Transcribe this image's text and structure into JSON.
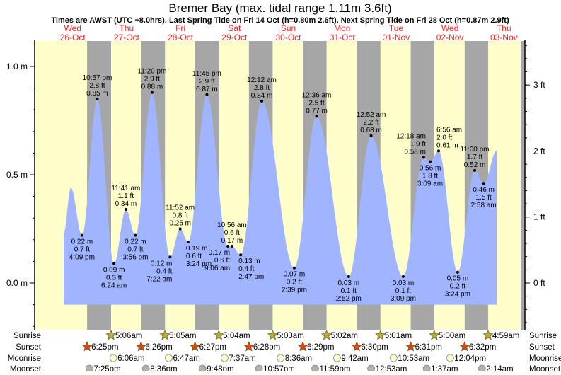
{
  "title": "Bremer Bay (max. tidal range 1.11m 3.6ft)",
  "subtitle": "Times are AWST (UTC +8.0hrs). Last Spring Tide on Fri 14 Oct (h=0.80m 2.6ft). Next Spring Tide on Fri 28 Oct (h=0.87m 2.9ft)",
  "colors": {
    "day": "#ffffcc",
    "night": "#a6a6a6",
    "water": "#a0b4ff",
    "day_label": "#ff2020",
    "sunrise": "#b8ac3c",
    "sunset": "#d9461a",
    "moonrise": "#ffffcc",
    "moonset": "#b4b4a4"
  },
  "chart_data": {
    "type": "area",
    "title": "Bremer Bay (max. tidal range 1.11m 3.6ft)",
    "days": [
      {
        "dow": "Wed",
        "date": "26-Oct"
      },
      {
        "dow": "Thu",
        "date": "27-Oct"
      },
      {
        "dow": "Fri",
        "date": "28-Oct"
      },
      {
        "dow": "Sat",
        "date": "29-Oct"
      },
      {
        "dow": "Sun",
        "date": "30-Oct"
      },
      {
        "dow": "Mon",
        "date": "31-Oct"
      },
      {
        "dow": "Tue",
        "date": "01-Nov"
      },
      {
        "dow": "Wed",
        "date": "02-Nov"
      },
      {
        "dow": "Thu",
        "date": "03-Nov"
      }
    ],
    "y_left": {
      "unit": "m",
      "ticks": [
        {
          "v": 0.0,
          "label": "0.0 m"
        },
        {
          "v": 0.5,
          "label": "0.5 m"
        },
        {
          "v": 1.0,
          "label": "1.0 m"
        }
      ],
      "range": [
        -0.21,
        1.12
      ]
    },
    "y_right": {
      "unit": "ft",
      "ticks": [
        {
          "v": 0,
          "label": "0 ft"
        },
        {
          "v": 1,
          "label": "1 ft"
        },
        {
          "v": 2,
          "label": "2 ft"
        },
        {
          "v": 3,
          "label": "3 ft"
        }
      ]
    },
    "curve_ends": [
      {
        "date": "26-Oct",
        "time": "8:00 am",
        "m": 0.23
      },
      {
        "date": "03-Nov",
        "time": "8:48 am",
        "m": 0.61
      }
    ],
    "extremes": [
      {
        "date": "26-Oct",
        "time": "11:12 am",
        "m": 0.44,
        "type": "high",
        "labeled": false
      },
      {
        "date": "26-Oct",
        "time": "4:09 pm",
        "m": 0.22,
        "ft": "0.7 ft",
        "type": "low",
        "labeled": true
      },
      {
        "date": "26-Oct",
        "time": "10:57 pm",
        "m": 0.85,
        "ft": "2.8 ft",
        "type": "high",
        "labeled": true
      },
      {
        "date": "27-Oct",
        "time": "6:24 am",
        "m": 0.09,
        "ft": "0.3 ft",
        "type": "low",
        "labeled": true
      },
      {
        "date": "27-Oct",
        "time": "11:41 am",
        "m": 0.34,
        "ft": "1.1 ft",
        "type": "high",
        "labeled": true
      },
      {
        "date": "27-Oct",
        "time": "3:56 pm",
        "m": 0.22,
        "ft": "0.7 ft",
        "type": "low",
        "labeled": true
      },
      {
        "date": "27-Oct",
        "time": "11:20 pm",
        "m": 0.88,
        "ft": "2.9 ft",
        "type": "high",
        "labeled": true
      },
      {
        "date": "28-Oct",
        "time": "7:22 am",
        "m": 0.12,
        "ft": "0.4 ft",
        "type": "low",
        "labeled": true
      },
      {
        "date": "28-Oct",
        "time": "11:52 am",
        "m": 0.25,
        "ft": "0.8 ft",
        "type": "high",
        "labeled": true
      },
      {
        "date": "28-Oct",
        "time": "3:24 pm",
        "m": 0.19,
        "ft": "0.6 ft",
        "type": "low",
        "labeled": true
      },
      {
        "date": "28-Oct",
        "time": "11:45 pm",
        "m": 0.87,
        "ft": "2.9 ft",
        "type": "high",
        "labeled": true
      },
      {
        "date": "29-Oct",
        "time": "9:06 am",
        "m": 0.17,
        "ft": "0.6 ft",
        "type": "low",
        "labeled": true
      },
      {
        "date": "29-Oct",
        "time": "10:56 am",
        "m": 0.17,
        "ft": "0.6 ft",
        "type": "high",
        "labeled": true
      },
      {
        "date": "29-Oct",
        "time": "2:47 pm",
        "m": 0.13,
        "ft": "0.4 ft",
        "type": "low",
        "labeled": true
      },
      {
        "date": "30-Oct",
        "time": "12:12 am",
        "m": 0.84,
        "ft": "2.8 ft",
        "type": "high",
        "labeled": true
      },
      {
        "date": "30-Oct",
        "time": "2:39 pm",
        "m": 0.07,
        "ft": "0.2 ft",
        "type": "low",
        "labeled": true
      },
      {
        "date": "31-Oct",
        "time": "12:36 am",
        "m": 0.77,
        "ft": "2.5 ft",
        "type": "high",
        "labeled": true
      },
      {
        "date": "31-Oct",
        "time": "2:52 pm",
        "m": 0.03,
        "ft": "0.1 ft",
        "type": "low",
        "labeled": true
      },
      {
        "date": "01-Nov",
        "time": "12:52 am",
        "m": 0.68,
        "ft": "2.2 ft",
        "type": "high",
        "labeled": true
      },
      {
        "date": "01-Nov",
        "time": "3:09 pm",
        "m": 0.03,
        "ft": "0.1 ft",
        "type": "low",
        "labeled": true
      },
      {
        "date": "02-Nov",
        "time": "12:18 am",
        "m": 0.58,
        "ft": "1.9 ft",
        "type": "high",
        "labeled": true
      },
      {
        "date": "02-Nov",
        "time": "3:09 am",
        "m": 0.56,
        "ft": "1.8 ft",
        "type": "low",
        "labeled": true
      },
      {
        "date": "02-Nov",
        "time": "6:56 am",
        "m": 0.61,
        "ft": "2.0 ft",
        "type": "high",
        "labeled": true
      },
      {
        "date": "02-Nov",
        "time": "3:24 pm",
        "m": 0.05,
        "ft": "0.2 ft",
        "type": "low",
        "labeled": true
      },
      {
        "date": "02-Nov",
        "time": "11:00 pm",
        "m": 0.52,
        "ft": "1.7 ft",
        "type": "high",
        "labeled": true
      },
      {
        "date": "03-Nov",
        "time": "2:58 am",
        "m": 0.46,
        "ft": "1.5 ft",
        "type": "low",
        "labeled": true
      }
    ],
    "legend": {
      "sunrise": {
        "label": "Sunrise",
        "events": [
          {
            "date": "27-Oct",
            "time": "5:06am"
          },
          {
            "date": "28-Oct",
            "time": "5:05am"
          },
          {
            "date": "29-Oct",
            "time": "5:04am"
          },
          {
            "date": "30-Oct",
            "time": "5:03am"
          },
          {
            "date": "31-Oct",
            "time": "5:02am"
          },
          {
            "date": "01-Nov",
            "time": "5:01am"
          },
          {
            "date": "02-Nov",
            "time": "5:00am"
          },
          {
            "date": "03-Nov",
            "time": "4:59am"
          }
        ]
      },
      "sunset": {
        "label": "Sunset",
        "events": [
          {
            "date": "26-Oct",
            "time": "6:25pm"
          },
          {
            "date": "27-Oct",
            "time": "6:26pm"
          },
          {
            "date": "28-Oct",
            "time": "6:27pm"
          },
          {
            "date": "29-Oct",
            "time": "6:28pm"
          },
          {
            "date": "30-Oct",
            "time": "6:29pm"
          },
          {
            "date": "31-Oct",
            "time": "6:30pm"
          },
          {
            "date": "01-Nov",
            "time": "6:31pm"
          },
          {
            "date": "02-Nov",
            "time": "6:32pm"
          }
        ]
      },
      "moonrise": {
        "label": "Moonrise",
        "events": [
          {
            "date": "27-Oct",
            "time": "6:06am"
          },
          {
            "date": "28-Oct",
            "time": "6:47am"
          },
          {
            "date": "29-Oct",
            "time": "7:37am"
          },
          {
            "date": "30-Oct",
            "time": "8:36am"
          },
          {
            "date": "31-Oct",
            "time": "9:42am"
          },
          {
            "date": "01-Nov",
            "time": "10:53am"
          },
          {
            "date": "02-Nov",
            "time": "12:04pm"
          }
        ]
      },
      "moonset": {
        "label": "Moonset",
        "events": [
          {
            "date": "26-Oct",
            "time": "7:25pm"
          },
          {
            "date": "27-Oct",
            "time": "8:36pm"
          },
          {
            "date": "28-Oct",
            "time": "9:48pm"
          },
          {
            "date": "29-Oct",
            "time": "10:57pm"
          },
          {
            "date": "30-Oct",
            "time": "11:59pm"
          },
          {
            "date": "01-Nov",
            "time": "12:53am"
          },
          {
            "date": "02-Nov",
            "time": "1:37am"
          },
          {
            "date": "03-Nov",
            "time": "2:14am"
          }
        ]
      }
    }
  }
}
